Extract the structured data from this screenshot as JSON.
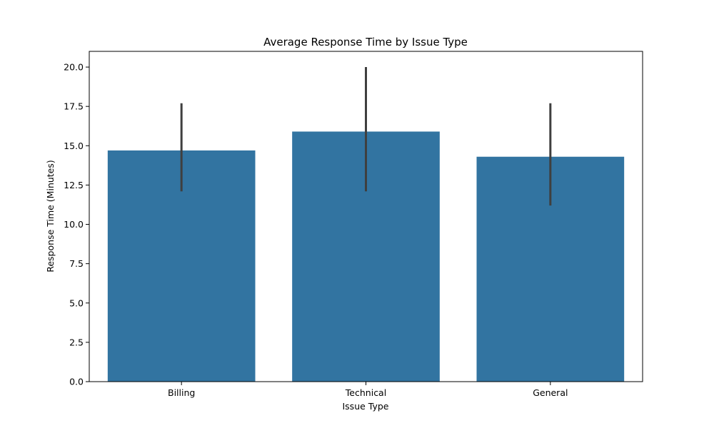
{
  "chart_data": {
    "type": "bar",
    "title": "Average Response Time by Issue Type",
    "xlabel": "Issue Type",
    "ylabel": "Response Time (Minutes)",
    "categories": [
      "Billing",
      "Technical",
      "General"
    ],
    "values": [
      14.7,
      15.9,
      14.3
    ],
    "error_low": [
      12.1,
      12.1,
      11.2
    ],
    "error_high": [
      17.7,
      20.0,
      17.7
    ],
    "ylim": [
      0,
      21
    ],
    "yticks": [
      0.0,
      2.5,
      5.0,
      7.5,
      10.0,
      12.5,
      15.0,
      17.5,
      20.0
    ],
    "ytick_labels": [
      "0.0",
      "2.5",
      "5.0",
      "7.5",
      "10.0",
      "12.5",
      "15.0",
      "17.5",
      "20.0"
    ],
    "grid": false,
    "legend": "none",
    "bar_color": "#3274a1",
    "error_color": "#3f3f3f"
  }
}
